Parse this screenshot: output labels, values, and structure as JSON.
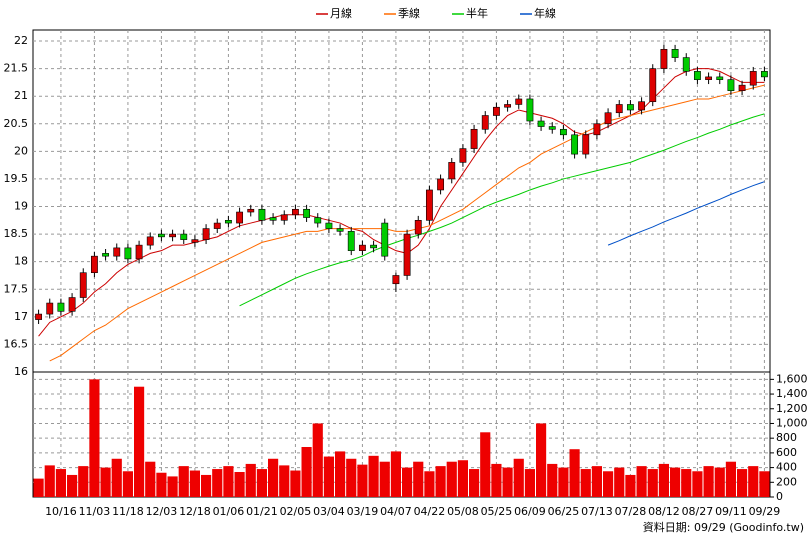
{
  "chart_data": [
    {
      "type": "candlestick",
      "categories": [
        null,
        null,
        "10/16",
        null,
        null,
        "11/03",
        null,
        null,
        "11/18",
        null,
        null,
        "12/03",
        null,
        null,
        "12/18",
        null,
        null,
        "01/06",
        null,
        null,
        "01/21",
        null,
        null,
        "02/05",
        null,
        null,
        "03/04",
        null,
        null,
        "03/19",
        null,
        null,
        "04/07",
        null,
        null,
        "04/22",
        null,
        null,
        "05/08",
        null,
        null,
        "05/25",
        null,
        null,
        "06/09",
        null,
        null,
        "06/25",
        null,
        null,
        "07/13",
        null,
        null,
        "07/28",
        null,
        null,
        "08/12",
        null,
        null,
        "08/27",
        null,
        null,
        "09/11",
        null,
        null,
        "09/29"
      ],
      "open": [
        16.95,
        17.05,
        17.25,
        17.1,
        17.35,
        17.8,
        18.15,
        18.1,
        18.25,
        18.05,
        18.3,
        18.5,
        18.45,
        18.5,
        18.35,
        18.4,
        18.6,
        18.75,
        18.7,
        18.9,
        18.95,
        18.8,
        18.75,
        18.85,
        18.95,
        18.8,
        18.7,
        18.6,
        18.55,
        18.2,
        18.3,
        18.7,
        17.6,
        17.75,
        18.5,
        18.75,
        19.3,
        19.5,
        19.8,
        20.05,
        20.4,
        20.65,
        20.8,
        20.85,
        20.95,
        20.55,
        20.45,
        20.4,
        20.3,
        19.95,
        20.3,
        20.5,
        20.7,
        20.85,
        20.75,
        20.9,
        21.5,
        21.85,
        21.7,
        21.45,
        21.3,
        21.35,
        21.3,
        21.1,
        21.2,
        21.45
      ],
      "high": [
        17.13,
        17.33,
        17.33,
        17.43,
        17.88,
        18.18,
        18.23,
        18.33,
        18.33,
        18.38,
        18.53,
        18.58,
        18.58,
        18.58,
        18.48,
        18.68,
        18.78,
        18.83,
        18.98,
        19.03,
        19.03,
        18.88,
        18.93,
        19.03,
        19.03,
        18.88,
        18.78,
        18.68,
        18.63,
        18.38,
        18.38,
        18.78,
        17.8,
        18.58,
        18.83,
        19.38,
        19.58,
        19.88,
        20.13,
        20.48,
        20.73,
        20.88,
        20.93,
        21.03,
        21.03,
        20.63,
        20.53,
        20.48,
        20.38,
        20.38,
        20.58,
        20.78,
        20.93,
        20.93,
        20.98,
        21.58,
        21.93,
        21.93,
        21.78,
        21.53,
        21.43,
        21.43,
        21.38,
        21.28,
        21.53,
        21.53
      ],
      "low": [
        16.87,
        16.97,
        17.02,
        17.02,
        17.27,
        17.72,
        18.02,
        18.02,
        17.97,
        17.97,
        18.22,
        18.37,
        18.37,
        18.32,
        18.27,
        18.32,
        18.52,
        18.62,
        18.62,
        18.82,
        18.67,
        18.67,
        18.67,
        18.77,
        18.72,
        18.62,
        18.52,
        18.47,
        18.12,
        18.12,
        18.17,
        18.02,
        17.45,
        17.67,
        18.42,
        18.67,
        19.22,
        19.42,
        19.72,
        19.97,
        20.32,
        20.57,
        20.72,
        20.77,
        20.47,
        20.37,
        20.32,
        20.22,
        19.87,
        19.87,
        20.22,
        20.42,
        20.62,
        20.67,
        20.67,
        20.82,
        21.42,
        21.62,
        21.37,
        21.22,
        21.22,
        21.22,
        21.02,
        21.02,
        21.12,
        21.27
      ],
      "close": [
        17.05,
        17.25,
        17.1,
        17.35,
        17.8,
        18.1,
        18.1,
        18.25,
        18.05,
        18.3,
        18.45,
        18.45,
        18.5,
        18.4,
        18.4,
        18.6,
        18.7,
        18.7,
        18.9,
        18.95,
        18.75,
        18.75,
        18.85,
        18.95,
        18.8,
        18.7,
        18.6,
        18.55,
        18.2,
        18.3,
        18.25,
        18.1,
        17.75,
        18.5,
        18.75,
        19.3,
        19.5,
        19.8,
        20.05,
        20.4,
        20.65,
        20.8,
        20.85,
        20.95,
        20.55,
        20.45,
        20.4,
        20.3,
        19.95,
        20.3,
        20.5,
        20.7,
        20.85,
        20.75,
        20.9,
        21.5,
        21.85,
        21.7,
        21.45,
        21.3,
        21.35,
        21.3,
        21.1,
        21.2,
        21.45,
        21.35
      ],
      "up_color": "#dd0000",
      "down_color": "#00cc00",
      "series": [
        {
          "name": "月線",
          "color": "#cc0000",
          "values": [
            16.65,
            16.9,
            17.0,
            17.1,
            17.25,
            17.45,
            17.6,
            17.8,
            17.95,
            18.05,
            18.15,
            18.2,
            18.3,
            18.3,
            18.35,
            18.4,
            18.45,
            18.55,
            18.65,
            18.7,
            18.75,
            18.8,
            18.85,
            18.85,
            18.85,
            18.8,
            18.75,
            18.7,
            18.6,
            18.55,
            18.4,
            18.3,
            18.2,
            18.15,
            18.3,
            18.6,
            19.0,
            19.3,
            19.6,
            19.9,
            20.2,
            20.45,
            20.65,
            20.75,
            20.7,
            20.65,
            20.6,
            20.5,
            20.35,
            20.3,
            20.35,
            20.45,
            20.55,
            20.65,
            20.75,
            20.95,
            21.15,
            21.35,
            21.45,
            21.5,
            21.5,
            21.45,
            21.35,
            21.25,
            21.25,
            21.25
          ]
        },
        {
          "name": "季線",
          "color": "#ff6a00",
          "values": [
            null,
            16.2,
            16.3,
            16.45,
            16.6,
            16.75,
            16.85,
            17.0,
            17.15,
            17.25,
            17.35,
            17.45,
            17.55,
            17.65,
            17.75,
            17.85,
            17.95,
            18.05,
            18.15,
            18.25,
            18.35,
            18.4,
            18.45,
            18.5,
            18.55,
            18.55,
            18.6,
            18.6,
            18.6,
            18.6,
            18.6,
            18.6,
            18.55,
            18.55,
            18.6,
            18.65,
            18.75,
            18.85,
            18.95,
            19.1,
            19.25,
            19.4,
            19.55,
            19.7,
            19.8,
            19.95,
            20.05,
            20.15,
            20.25,
            20.35,
            20.45,
            20.55,
            20.6,
            20.65,
            20.7,
            20.75,
            20.8,
            20.85,
            20.9,
            20.95,
            20.95,
            21.0,
            21.05,
            21.1,
            21.15,
            21.2
          ]
        },
        {
          "name": "半年",
          "color": "#00cc00",
          "values": [
            null,
            null,
            null,
            null,
            null,
            null,
            null,
            null,
            null,
            null,
            null,
            null,
            null,
            null,
            null,
            null,
            null,
            null,
            17.2,
            17.3,
            17.4,
            17.5,
            17.6,
            17.7,
            17.78,
            17.85,
            17.92,
            17.98,
            18.03,
            18.1,
            18.2,
            18.28,
            18.35,
            18.42,
            18.48,
            18.55,
            18.62,
            18.7,
            18.8,
            18.9,
            19.0,
            19.08,
            19.15,
            19.22,
            19.3,
            19.37,
            19.43,
            19.5,
            19.55,
            19.6,
            19.65,
            19.7,
            19.75,
            19.8,
            19.88,
            19.95,
            20.02,
            20.1,
            20.18,
            20.25,
            20.33,
            20.4,
            20.48,
            20.55,
            20.62,
            20.68
          ]
        },
        {
          "name": "年線",
          "color": "#0050c8",
          "values": [
            null,
            null,
            null,
            null,
            null,
            null,
            null,
            null,
            null,
            null,
            null,
            null,
            null,
            null,
            null,
            null,
            null,
            null,
            null,
            null,
            null,
            null,
            null,
            null,
            null,
            null,
            null,
            null,
            null,
            null,
            null,
            null,
            null,
            null,
            null,
            null,
            null,
            null,
            null,
            null,
            null,
            null,
            null,
            null,
            null,
            null,
            null,
            null,
            null,
            null,
            null,
            18.3,
            18.38,
            18.47,
            18.55,
            18.63,
            18.72,
            18.8,
            18.88,
            18.97,
            19.05,
            19.13,
            19.22,
            19.3,
            19.38,
            19.45
          ]
        }
      ],
      "ylim": [
        16,
        22.2
      ],
      "yticks": [
        16,
        16.5,
        17,
        17.5,
        18,
        18.5,
        19,
        19.5,
        20,
        20.5,
        21,
        21.5,
        22
      ],
      "grid": true
    },
    {
      "type": "bar",
      "color": "#ee0000",
      "values": [
        250,
        430,
        380,
        300,
        420,
        1600,
        400,
        520,
        350,
        1500,
        480,
        330,
        280,
        420,
        360,
        300,
        380,
        420,
        340,
        450,
        380,
        520,
        430,
        360,
        680,
        1000,
        550,
        620,
        520,
        440,
        560,
        480,
        620,
        400,
        480,
        350,
        420,
        480,
        500,
        380,
        880,
        450,
        400,
        520,
        380,
        1000,
        450,
        400,
        650,
        380,
        420,
        350,
        400,
        300,
        420,
        380,
        450,
        400,
        380,
        350,
        420,
        400,
        480,
        380,
        420,
        350
      ],
      "ylim": [
        0,
        1700
      ],
      "yticks": [
        0,
        200,
        400,
        600,
        800,
        {
          "value": 1000,
          "label": "1,000"
        },
        {
          "value": 1200,
          "label": "1,200"
        },
        {
          "value": 1400,
          "label": "1,400"
        },
        {
          "value": 1600,
          "label": "1,600"
        }
      ],
      "grid": true
    }
  ],
  "source": "資料日期: 09/29 (Goodinfo.tw)"
}
